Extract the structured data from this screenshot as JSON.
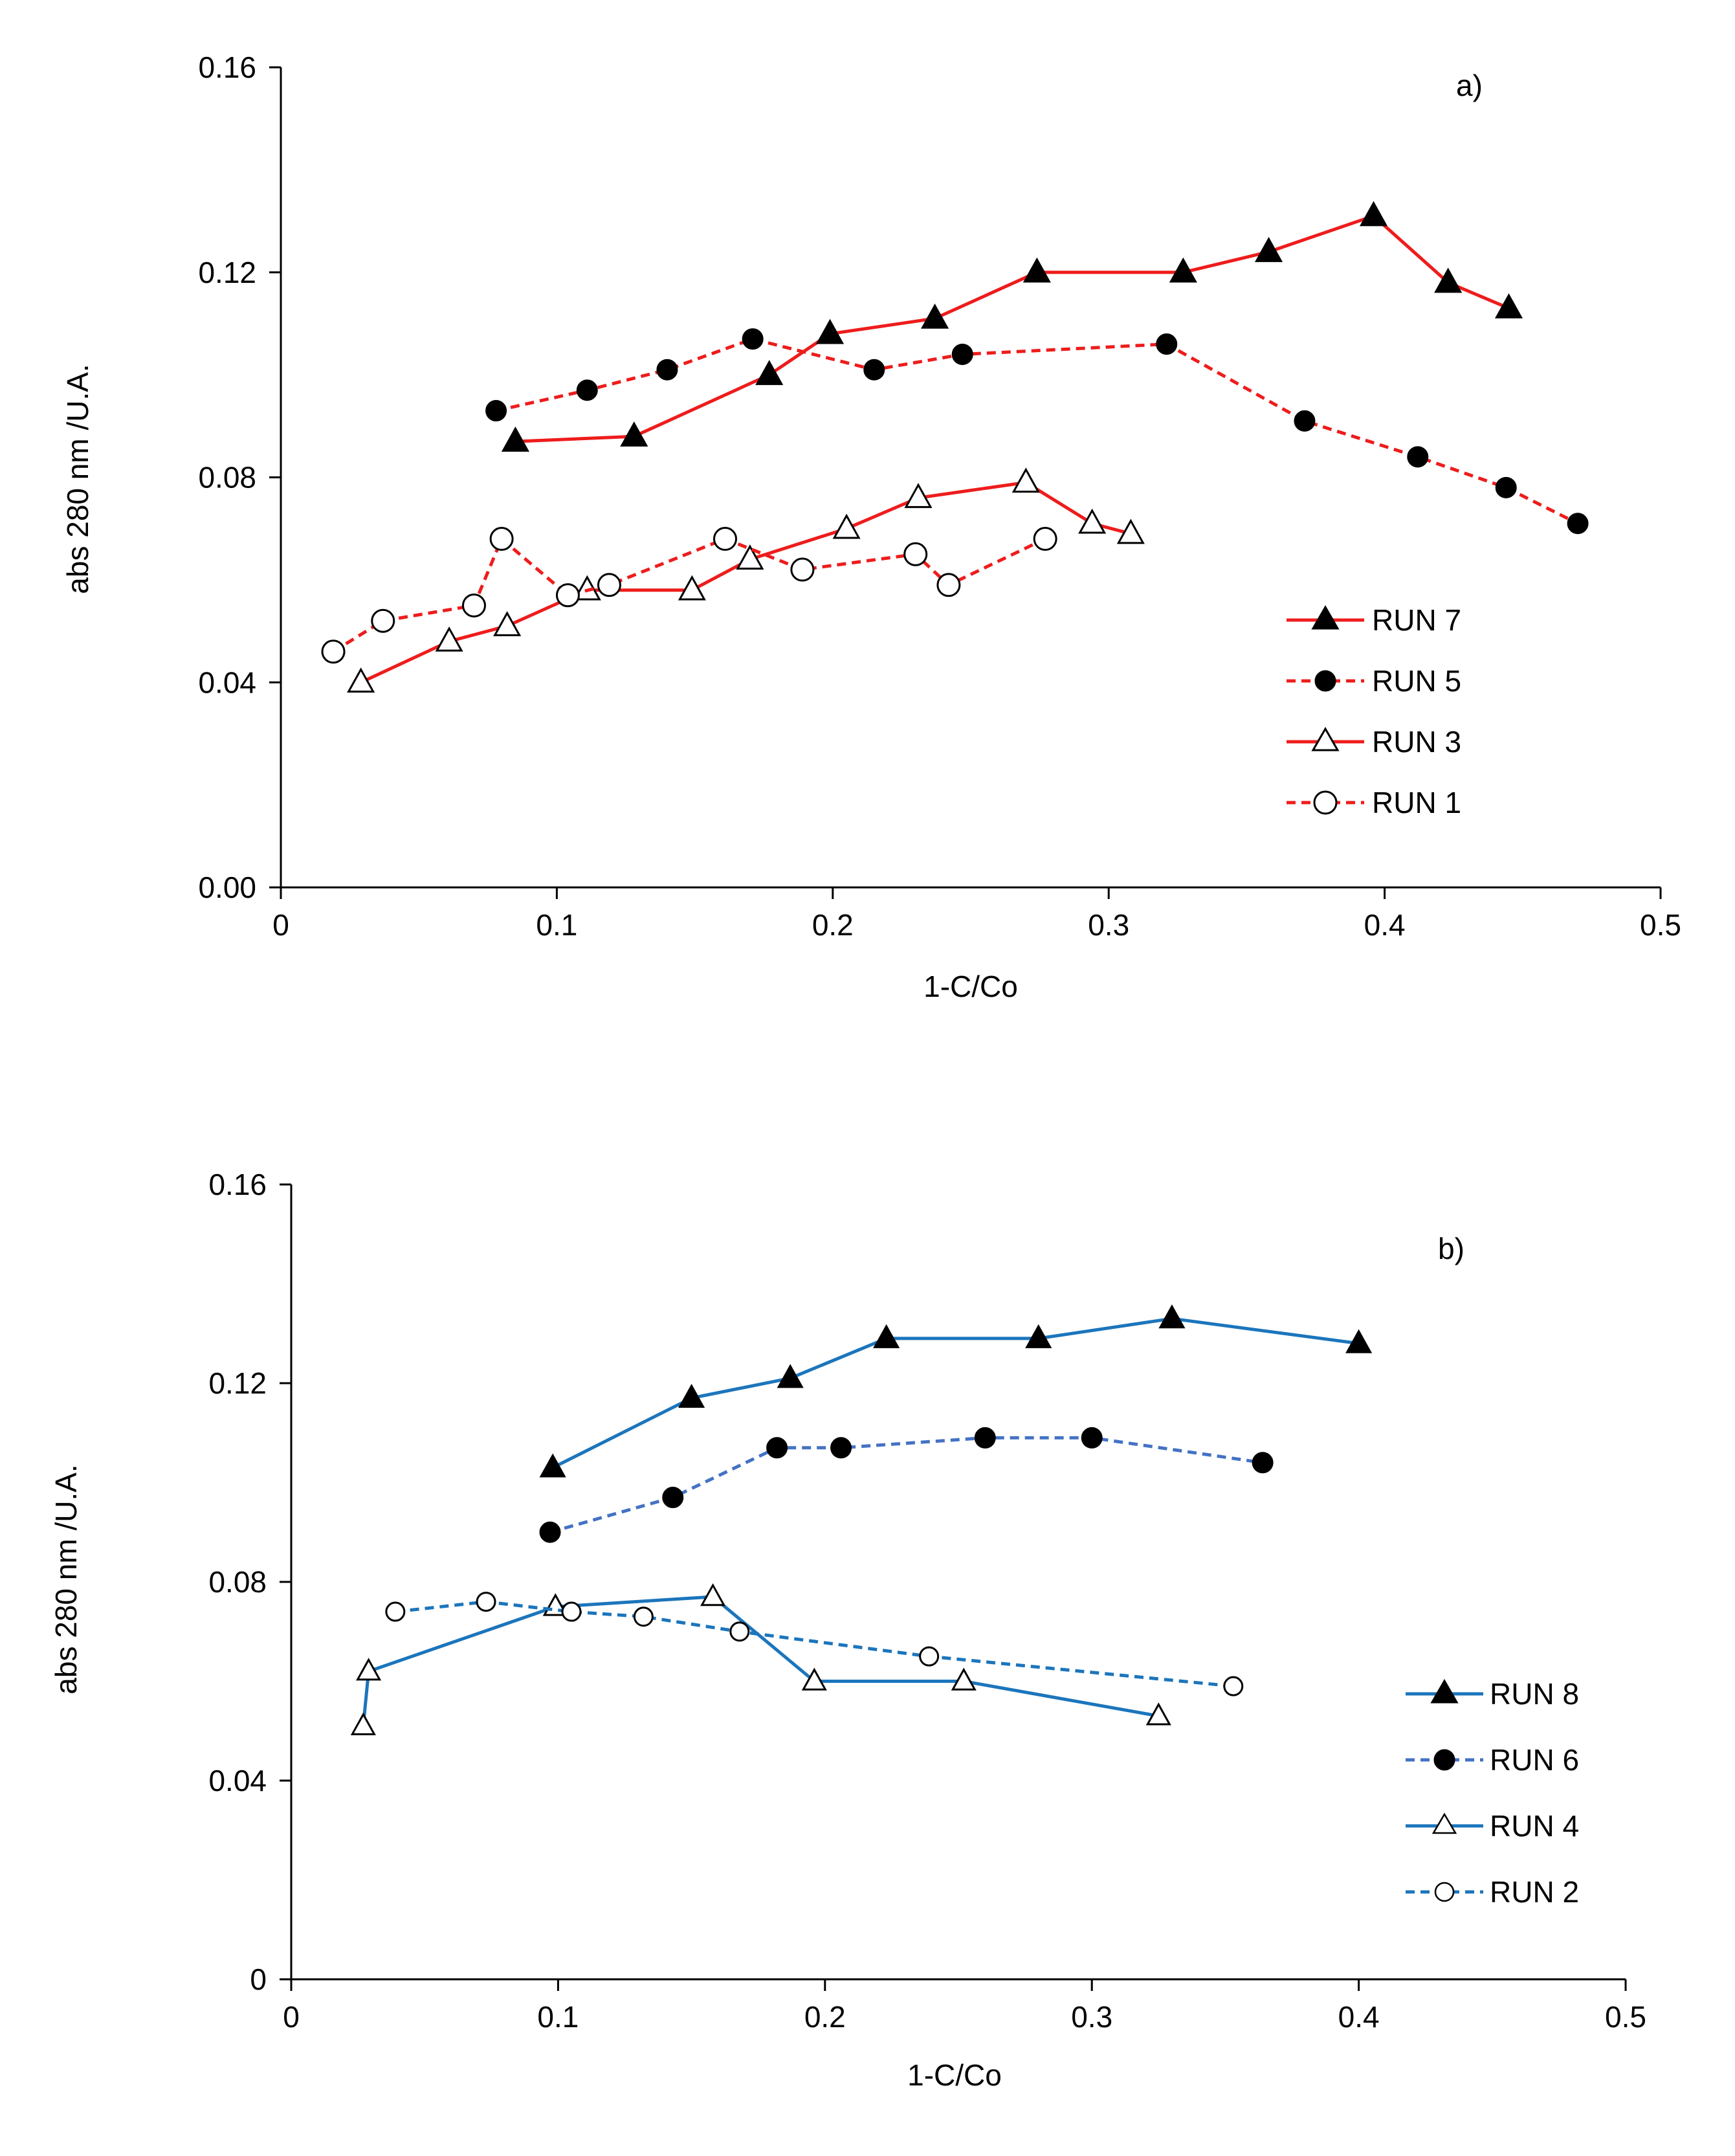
{
  "chart_data": [
    {
      "type": "line",
      "panel_label": "a)",
      "xlabel": "1-C/Co",
      "ylabel": "abs 280 nm /U.A.",
      "xlim": [
        0,
        0.5
      ],
      "ylim": [
        0,
        0.16
      ],
      "x_ticks": [
        0,
        0.1,
        0.2,
        0.3,
        0.4,
        0.5
      ],
      "x_tick_labels": [
        "0",
        "0.1",
        "0.2",
        "0.3",
        "0.4",
        "0.5"
      ],
      "y_ticks": [
        0,
        0.04,
        0.08,
        0.12,
        0.16
      ],
      "y_tick_labels": [
        "0.00",
        "0.04",
        "0.08",
        "0.12",
        "0.16"
      ],
      "grid": false,
      "legend_position": "lower-right",
      "series": [
        {
          "name": "RUN 7",
          "color": "#ee1c1c",
          "line": "solid",
          "marker": "triangle-filled",
          "x": [
            0.085,
            0.128,
            0.177,
            0.199,
            0.237,
            0.274,
            0.327,
            0.358,
            0.396,
            0.423,
            0.445
          ],
          "y": [
            0.087,
            0.088,
            0.1,
            0.108,
            0.111,
            0.12,
            0.12,
            0.124,
            0.131,
            0.118,
            0.113
          ]
        },
        {
          "name": "RUN 5",
          "color": "#ee1c1c",
          "line": "dashed",
          "marker": "circle-filled",
          "x": [
            0.078,
            0.111,
            0.14,
            0.171,
            0.215,
            0.247,
            0.321,
            0.371,
            0.412,
            0.444,
            0.47
          ],
          "y": [
            0.093,
            0.097,
            0.101,
            0.107,
            0.101,
            0.104,
            0.106,
            0.091,
            0.084,
            0.078,
            0.071
          ]
        },
        {
          "name": "RUN 3",
          "color": "#ee1c1c",
          "line": "solid",
          "marker": "triangle-open",
          "x": [
            0.029,
            0.061,
            0.082,
            0.111,
            0.149,
            0.17,
            0.205,
            0.231,
            0.27,
            0.294,
            0.308
          ],
          "y": [
            0.04,
            0.048,
            0.051,
            0.058,
            0.058,
            0.064,
            0.07,
            0.076,
            0.079,
            0.071,
            0.069
          ]
        },
        {
          "name": "RUN 1",
          "color": "#ee1c1c",
          "line": "dashed",
          "marker": "circle-open",
          "x": [
            0.019,
            0.037,
            0.07,
            0.08,
            0.104,
            0.119,
            0.161,
            0.189,
            0.23,
            0.242,
            0.277
          ],
          "y": [
            0.046,
            0.052,
            0.055,
            0.068,
            0.057,
            0.059,
            0.068,
            0.062,
            0.065,
            0.059,
            0.068
          ]
        }
      ]
    },
    {
      "type": "line",
      "panel_label": "b)",
      "xlabel": "1-C/Co",
      "ylabel": "abs 280 nm /U.A.",
      "xlim": [
        0,
        0.5
      ],
      "ylim": [
        0,
        0.16
      ],
      "x_ticks": [
        0,
        0.1,
        0.2,
        0.3,
        0.4,
        0.5
      ],
      "x_tick_labels": [
        "0",
        "0.1",
        "0.2",
        "0.3",
        "0.4",
        "0.5"
      ],
      "y_ticks": [
        0,
        0.04,
        0.08,
        0.12,
        0.16
      ],
      "y_tick_labels": [
        "0",
        "0.04",
        "0.08",
        "0.12",
        "0.16"
      ],
      "grid": false,
      "legend_position": "lower-right",
      "series": [
        {
          "name": "RUN 8",
          "color": "#1b75bc",
          "line": "solid",
          "marker": "triangle-filled",
          "x": [
            0.098,
            0.15,
            0.187,
            0.223,
            0.28,
            0.33,
            0.4
          ],
          "y": [
            0.103,
            0.117,
            0.121,
            0.129,
            0.129,
            0.133,
            0.128
          ]
        },
        {
          "name": "RUN 6",
          "color": "#4472c4",
          "line": "dashed",
          "marker": "circle-filled",
          "x": [
            0.097,
            0.143,
            0.182,
            0.206,
            0.26,
            0.3,
            0.364
          ],
          "y": [
            0.09,
            0.097,
            0.107,
            0.107,
            0.109,
            0.109,
            0.104
          ]
        },
        {
          "name": "RUN 4",
          "color": "#1b75bc",
          "line": "solid",
          "marker": "triangle-open",
          "x": [
            0.027,
            0.029,
            0.099,
            0.158,
            0.196,
            0.252,
            0.325
          ],
          "y": [
            0.051,
            0.062,
            0.075,
            0.077,
            0.06,
            0.06,
            0.053
          ]
        },
        {
          "name": "RUN 2",
          "color": "#1b75bc",
          "line": "dashed",
          "marker": "circle-open",
          "x": [
            0.039,
            0.073,
            0.105,
            0.132,
            0.168,
            0.239,
            0.353
          ],
          "y": [
            0.074,
            0.076,
            0.074,
            0.073,
            0.07,
            0.065,
            0.059
          ]
        }
      ]
    }
  ]
}
